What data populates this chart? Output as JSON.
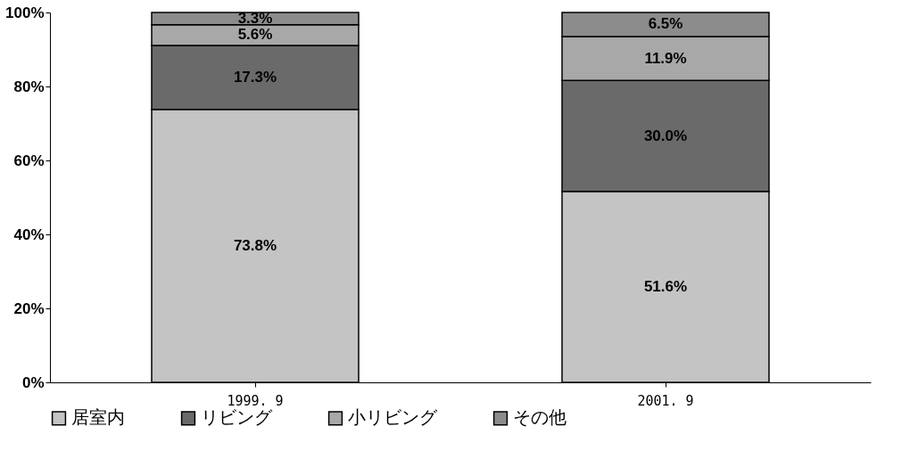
{
  "chart_data": {
    "type": "bar",
    "stacked": true,
    "categories": [
      "1999. 9",
      "2001. 9"
    ],
    "series": [
      {
        "name": "居室内",
        "color": "#c4c4c4",
        "values": [
          73.8,
          51.6
        ],
        "value_labels": [
          "73.8%",
          "51.6%"
        ]
      },
      {
        "name": "リビング",
        "color": "#6a6a6a",
        "values": [
          17.3,
          30.0
        ],
        "value_labels": [
          "17.3%",
          "30.0%"
        ]
      },
      {
        "name": "小リビング",
        "color": "#a8a8a8",
        "values": [
          5.6,
          11.9
        ],
        "value_labels": [
          "5.6%",
          "11.9%"
        ]
      },
      {
        "name": "その他",
        "color": "#8c8c8c",
        "values": [
          3.3,
          6.5
        ],
        "value_labels": [
          "3.3%",
          "6.5%"
        ]
      }
    ],
    "ylim": [
      0,
      100
    ],
    "yticks": [
      {
        "value": 0,
        "label": "0%"
      },
      {
        "value": 20,
        "label": "20%"
      },
      {
        "value": 40,
        "label": "40%"
      },
      {
        "value": 60,
        "label": "60%"
      },
      {
        "value": 80,
        "label": "80%"
      },
      {
        "value": 100,
        "label": "100%"
      }
    ],
    "grid": false,
    "legend": "bottom"
  }
}
